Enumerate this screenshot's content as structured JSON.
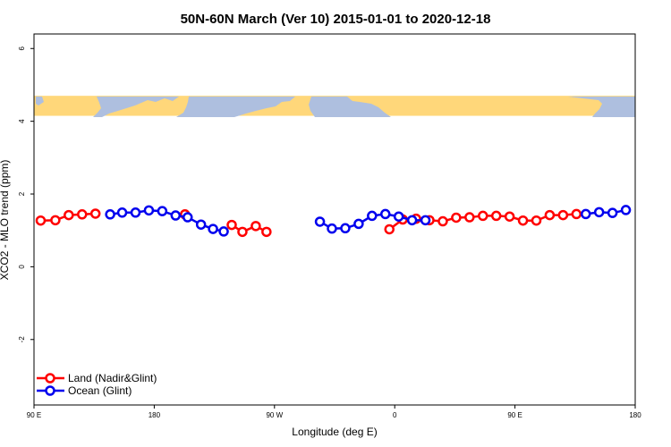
{
  "chart_data": {
    "type": "line",
    "title": "50N-60N March (Ver 10)   2015-01-01 to 2020-12-18",
    "xlabel": "Longitude (deg E)",
    "ylabel": "XCO2 - MLO trend (ppm)",
    "xlim": [
      90,
      540
    ],
    "ylim": [
      -3.8,
      6.4
    ],
    "xticks": [
      {
        "value": 90,
        "label": "90 E"
      },
      {
        "value": 180,
        "label": "180"
      },
      {
        "value": 270,
        "label": "90 W"
      },
      {
        "value": 360,
        "label": "0"
      },
      {
        "value": 450,
        "label": "90 E"
      },
      {
        "value": 540,
        "label": "180"
      }
    ],
    "yticks": [
      {
        "value": -2,
        "label": "-2"
      },
      {
        "value": 0,
        "label": "0"
      },
      {
        "value": 2,
        "label": "2"
      },
      {
        "value": 4,
        "label": "4"
      },
      {
        "value": 6,
        "label": "6"
      }
    ],
    "map_band": {
      "ymin": 4.15,
      "ymax": 4.7,
      "land_color": "#FFD77A",
      "ocean_color": "#AEBFDF"
    },
    "series": [
      {
        "name": "Land (Nadir&Glint)",
        "color": "#FF0000",
        "segments": [
          [
            [
              95,
              1.27
            ],
            [
              106,
              1.28
            ],
            [
              116,
              1.42
            ],
            [
              126,
              1.44
            ],
            [
              136,
              1.46
            ]
          ],
          [
            [
              203,
              1.44
            ]
          ],
          [
            [
              238,
              1.15
            ],
            [
              246,
              0.96
            ],
            [
              256,
              1.12
            ],
            [
              264,
              0.96
            ]
          ],
          [
            [
              356,
              1.03
            ],
            [
              366,
              1.3
            ],
            [
              376,
              1.32
            ],
            [
              386,
              1.28
            ],
            [
              396,
              1.25
            ],
            [
              406,
              1.35
            ],
            [
              416,
              1.36
            ],
            [
              426,
              1.4
            ],
            [
              436,
              1.4
            ],
            [
              446,
              1.38
            ],
            [
              456,
              1.27
            ],
            [
              466,
              1.27
            ],
            [
              476,
              1.42
            ],
            [
              486,
              1.42
            ],
            [
              496,
              1.45
            ]
          ]
        ]
      },
      {
        "name": "Ocean (Glint)",
        "color": "#0000EE",
        "segments": [
          [
            [
              147,
              1.44
            ],
            [
              156,
              1.49
            ],
            [
              166,
              1.49
            ],
            [
              176,
              1.55
            ],
            [
              186,
              1.53
            ],
            [
              196,
              1.41
            ],
            [
              205,
              1.36
            ],
            [
              215,
              1.16
            ],
            [
              224,
              1.04
            ],
            [
              232,
              0.97
            ]
          ],
          [
            [
              304,
              1.24
            ],
            [
              313,
              1.05
            ],
            [
              323,
              1.06
            ],
            [
              333,
              1.18
            ],
            [
              343,
              1.4
            ],
            [
              353,
              1.45
            ],
            [
              363,
              1.38
            ],
            [
              373,
              1.28
            ],
            [
              383,
              1.28
            ]
          ],
          [
            [
              503,
              1.45
            ],
            [
              513,
              1.5
            ],
            [
              523,
              1.48
            ],
            [
              533,
              1.56
            ]
          ]
        ]
      }
    ]
  }
}
